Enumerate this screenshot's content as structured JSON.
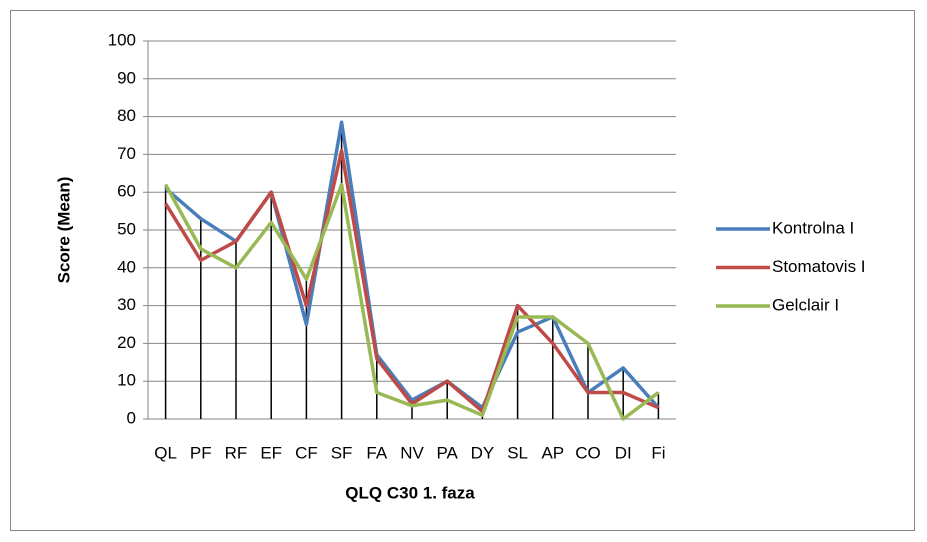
{
  "chart_data": {
    "type": "line",
    "x_label": "QLQ C30 1. faza",
    "y_label": "Score (Mean)",
    "categories": [
      "QL",
      "PF",
      "RF",
      "EF",
      "CF",
      "SF",
      "FA",
      "NV",
      "PA",
      "DY",
      "SL",
      "AP",
      "CO",
      "DI",
      "Fi"
    ],
    "series": [
      {
        "name": "Kontrolna I",
        "color": "#4a7ebb",
        "values": [
          61,
          53,
          47,
          60,
          25,
          78.5,
          17,
          5,
          10,
          3,
          23,
          27,
          7,
          13.5,
          3
        ]
      },
      {
        "name": "Stomatovis I",
        "color": "#be4b48",
        "values": [
          57,
          42,
          47,
          60,
          30,
          71,
          16,
          4,
          10,
          2,
          30,
          20,
          7,
          7,
          3
        ]
      },
      {
        "name": "Gelclair I",
        "color": "#98b954",
        "values": [
          62,
          45,
          40,
          52,
          37,
          62,
          7,
          3.5,
          5,
          1,
          27,
          27,
          20,
          0,
          7
        ]
      }
    ],
    "ylim": [
      0,
      100
    ],
    "yticks": [
      0,
      10,
      20,
      30,
      40,
      50,
      60,
      70,
      80,
      90,
      100
    ],
    "grid": true,
    "drop_lines": true,
    "legend": "right"
  }
}
